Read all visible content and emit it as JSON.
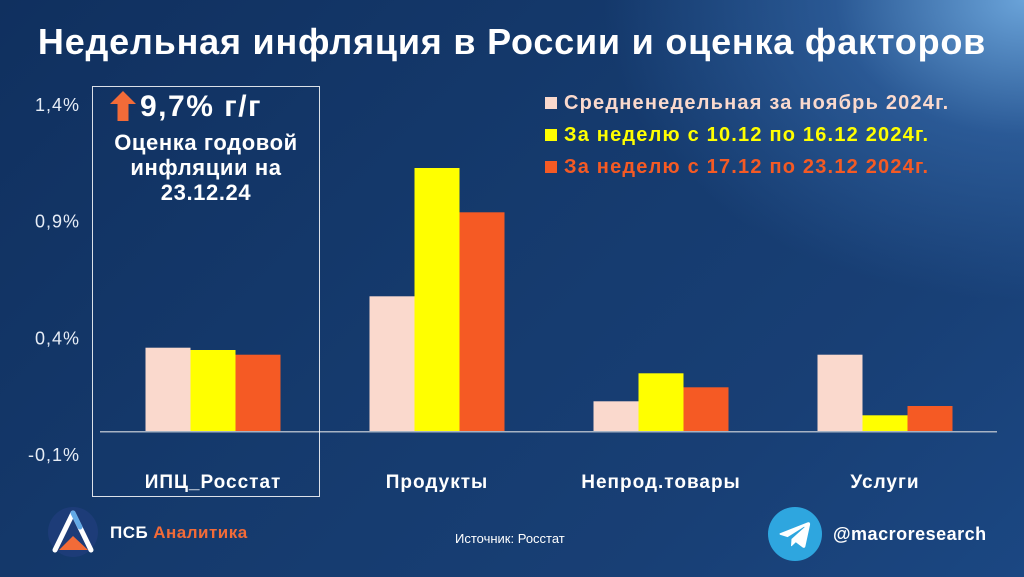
{
  "chart_data": {
    "type": "bar",
    "title": "Недельная инфляция в России и оценка факторов",
    "categories": [
      "ИПЦ_Росстат",
      "Продукты",
      "Непрод.товары",
      "Услуги"
    ],
    "series": [
      {
        "name": "Средненедельная за ноябрь 2024г.",
        "color": "#fad9cd",
        "values": [
          0.36,
          0.58,
          0.13,
          0.33
        ]
      },
      {
        "name": "За неделю с 10.12 по 16.12 2024г.",
        "color": "#ffff00",
        "values": [
          0.35,
          1.13,
          0.25,
          0.07
        ]
      },
      {
        "name": "За неделю с 17.12 по 23.12 2024г.",
        "color": "#f55a24",
        "values": [
          0.33,
          0.94,
          0.19,
          0.11
        ]
      }
    ],
    "y_ticks": [
      {
        "value": 1.4,
        "label": "1,4%"
      },
      {
        "value": 0.9,
        "label": "0,9%"
      },
      {
        "value": 0.4,
        "label": "0,4%"
      },
      {
        "value": -0.1,
        "label": "-0,1%"
      }
    ],
    "ylim": [
      -0.1,
      1.4
    ],
    "grid": false,
    "legend": "top-right"
  },
  "highlight": {
    "arrow_icon": "arrow-up-icon",
    "value": "9,7% г/г",
    "caption_lines": [
      "Оценка годовой",
      "инфляции на",
      "23.12.24"
    ]
  },
  "footer": {
    "logo_icon": "psb-logo-icon",
    "brand_name": "ПСБ",
    "brand_suffix": "Аналитика",
    "source": "Источник: Росстат",
    "telegram_icon": "telegram-icon",
    "telegram_handle": "@macroresearch"
  },
  "colors": {
    "background": "#153a6d",
    "accent_orange": "#f26b38",
    "telegram_blue": "#2ea6df",
    "axis_line": "#a7b3c4",
    "text": "#ffffff"
  }
}
